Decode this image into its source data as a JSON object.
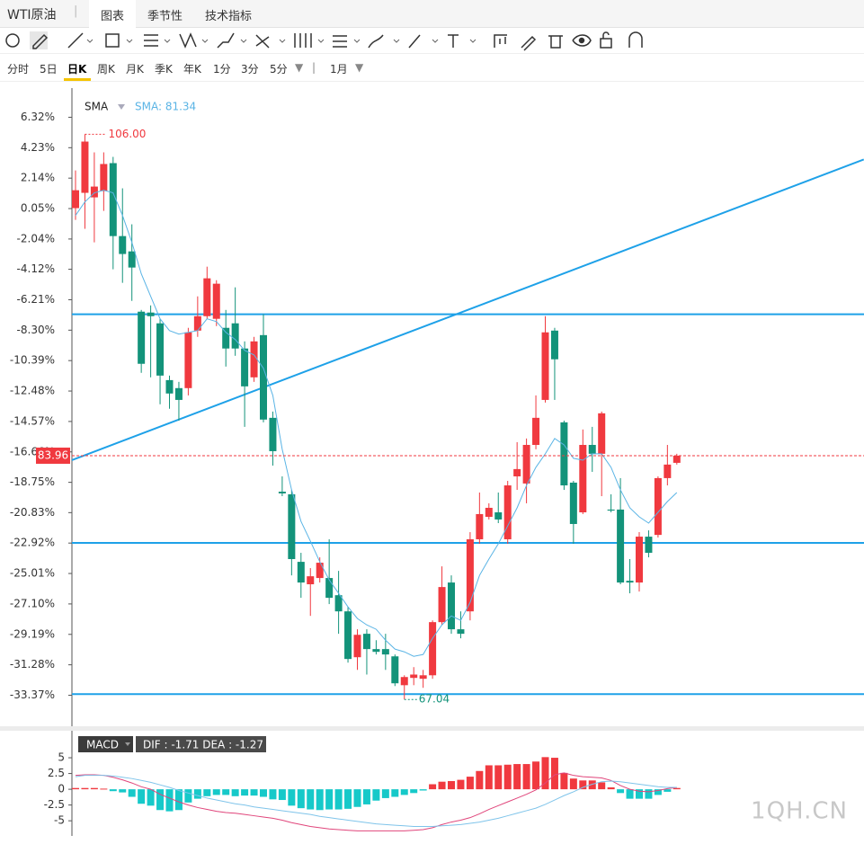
{
  "tabs": {
    "instrument": "WTI原油",
    "items": [
      "图表",
      "季节性",
      "技术指标"
    ]
  },
  "periods": {
    "items": [
      "分时",
      "5日",
      "日K",
      "周K",
      "月K",
      "季K",
      "年K",
      "1分",
      "3分",
      "5分"
    ],
    "range": "1月"
  },
  "watermark": "1QH.CN",
  "chart_data": [
    {
      "type": "candlestick",
      "indicator": "SMA",
      "indicator_label": "SMA: 81.34",
      "ylim": [
        -35.5,
        8.2
      ],
      "yticks": [
        {
          "value": 6.32,
          "label": "6.32%"
        },
        {
          "value": 4.23,
          "label": "4.23%"
        },
        {
          "value": 2.14,
          "label": "2.14%"
        },
        {
          "value": 0.05,
          "label": "0.05%"
        },
        {
          "value": -2.04,
          "label": "-2.04%"
        },
        {
          "value": -4.12,
          "label": "-4.12%"
        },
        {
          "value": -6.21,
          "label": "-6.21%"
        },
        {
          "value": -8.3,
          "label": "-8.30%"
        },
        {
          "value": -10.39,
          "label": "-10.39%"
        },
        {
          "value": -12.48,
          "label": "-12.48%"
        },
        {
          "value": -14.57,
          "label": "-14.57%"
        },
        {
          "value": -16.66,
          "label": "-16.66%"
        },
        {
          "value": -18.75,
          "label": "-18.75%"
        },
        {
          "value": -20.83,
          "label": "-20.83%"
        },
        {
          "value": -22.92,
          "label": "-22.92%"
        },
        {
          "value": -25.01,
          "label": "-25.01%"
        },
        {
          "value": -27.1,
          "label": "-27.10%"
        },
        {
          "value": -29.19,
          "label": "-29.19%"
        },
        {
          "value": -31.28,
          "label": "-31.28%"
        },
        {
          "value": -33.37,
          "label": "-33.37%"
        }
      ],
      "up_color": "#f0393f",
      "down_color": "#13937a",
      "ohlc": [
        [
          0.08,
          2.67,
          -0.73,
          1.31
        ],
        [
          1.13,
          5.15,
          -1.34,
          4.65
        ],
        [
          0.82,
          3.91,
          -2.27,
          1.56
        ],
        [
          1.25,
          3.91,
          -0.11,
          3.11
        ],
        [
          3.17,
          3.6,
          -4.12,
          -1.84
        ],
        [
          -1.84,
          1.44,
          -5.05,
          -3.07
        ],
        [
          -2.89,
          -1.03,
          -6.29,
          -4.0
        ],
        [
          -7.03,
          -6.91,
          -11.23,
          -10.61
        ],
        [
          -7.09,
          -6.6,
          -11.54,
          -7.34
        ],
        [
          -7.83,
          -7.52,
          -13.39,
          -11.42
        ],
        [
          -11.73,
          -11.42,
          -13.7,
          -12.65
        ],
        [
          -12.28,
          -11.85,
          -14.51,
          -13.09
        ],
        [
          -12.28,
          -8.14,
          -12.78,
          -8.45
        ],
        [
          -8.33,
          -5.98,
          -8.76,
          -7.34
        ],
        [
          -7.34,
          -3.94,
          -7.52,
          -4.74
        ],
        [
          -7.52,
          -4.87,
          -8.02,
          -5.11
        ],
        [
          -8.14,
          -6.91,
          -10.8,
          -9.56
        ],
        [
          -7.83,
          -5.36,
          -10.06,
          -9.56
        ],
        [
          -9.56,
          -9.07,
          -14.94,
          -12.16
        ],
        [
          -11.54,
          -8.76,
          -11.85,
          -9.07
        ],
        [
          -8.64,
          -7.21,
          -14.63,
          -14.44
        ],
        [
          -14.32,
          -13.89,
          -17.6,
          -16.61
        ],
        [
          -19.39,
          -18.34,
          -19.7,
          -19.51
        ],
        [
          -19.57,
          -19.27,
          -25.14,
          -24.02
        ],
        [
          -24.21,
          -23.59,
          -26.68,
          -25.63
        ],
        [
          -25.75,
          -24.64,
          -27.92,
          -25.2
        ],
        [
          -25.32,
          -23.9,
          -25.63,
          -24.27
        ],
        [
          -25.32,
          -22.66,
          -27.11,
          -26.68
        ],
        [
          -26.5,
          -24.83,
          -29.15,
          -27.61
        ],
        [
          -27.61,
          -27.3,
          -31.13,
          -30.88
        ],
        [
          -30.76,
          -28.84,
          -31.63,
          -29.22
        ],
        [
          -29.15,
          -28.84,
          -31.95,
          -30.2
        ],
        [
          -30.2,
          -29.59,
          -30.57,
          -30.39
        ],
        [
          -30.2,
          -29.15,
          -31.63,
          -30.57
        ],
        [
          -30.7,
          -30.57,
          -32.74,
          -32.55
        ],
        [
          -32.68,
          -32.0,
          -33.66,
          -32.12
        ],
        [
          -32.18,
          -31.44,
          -32.68,
          -31.95
        ],
        [
          -32.24,
          -31.63,
          -32.86,
          -32.0
        ],
        [
          -32.0,
          -28.23,
          -32.24,
          -28.35
        ],
        [
          -28.35,
          -24.52,
          -28.54,
          -25.94
        ],
        [
          -25.63,
          -25.14,
          -29.15,
          -28.84
        ],
        [
          -28.84,
          -27.61,
          -29.46,
          -29.15
        ],
        [
          -27.61,
          -22.17,
          -28.23,
          -22.66
        ],
        [
          -22.66,
          -19.45,
          -22.97,
          -20.93
        ],
        [
          -21.12,
          -20.19,
          -21.3,
          -20.5
        ],
        [
          -20.81,
          -19.45,
          -21.55,
          -21.3
        ],
        [
          -22.66,
          -18.65,
          -22.97,
          -18.96
        ],
        [
          -18.34,
          -15.99,
          -19.27,
          -17.84
        ],
        [
          -18.83,
          -15.74,
          -20.19,
          -16.18
        ],
        [
          -16.18,
          -12.78,
          -16.48,
          -14.32
        ],
        [
          -13.09,
          -7.34,
          -13.27,
          -8.45
        ],
        [
          -8.33,
          -8.14,
          -13.09,
          -10.3
        ],
        [
          -14.63,
          -14.51,
          -19.27,
          -18.96
        ],
        [
          -18.77,
          -18.65,
          -22.97,
          -21.61
        ],
        [
          -20.81,
          -15.12,
          -20.93,
          -16.18
        ],
        [
          -16.18,
          -14.94,
          -18.03,
          -16.79
        ],
        [
          -16.79,
          -13.89,
          -19.7,
          -14.01
        ],
        [
          -20.62,
          -19.57,
          -20.81,
          -20.69
        ],
        [
          -20.62,
          -18.46,
          -25.75,
          -25.63
        ],
        [
          -25.51,
          -24.02,
          -26.37,
          -25.63
        ],
        [
          -25.63,
          -22.17,
          -26.25,
          -22.48
        ],
        [
          -22.48,
          -22.05,
          -23.9,
          -23.59
        ],
        [
          -22.36,
          -18.34,
          -22.54,
          -18.46
        ],
        [
          -18.46,
          -16.18,
          -18.96,
          -17.53
        ],
        [
          -17.41,
          -16.79,
          -17.53,
          -16.92
        ]
      ],
      "sma": {
        "color": "#5ab4e5",
        "values": [
          -0.42,
          0.51,
          1.13,
          1.31,
          1.13,
          -0.42,
          -2.27,
          -4.43,
          -5.98,
          -7.52,
          -8.33,
          -8.57,
          -8.45,
          -8.33,
          -7.52,
          -7.71,
          -8.45,
          -8.94,
          -9.69,
          -10.0,
          -10.92,
          -12.78,
          -16.48,
          -19.27,
          -21.43,
          -22.79,
          -24.21,
          -25.45,
          -26.37,
          -27.3,
          -28.1,
          -28.54,
          -28.84,
          -29.59,
          -30.2,
          -30.39,
          -30.7,
          -30.57,
          -29.46,
          -28.54,
          -27.92,
          -28.23,
          -26.99,
          -25.14,
          -24.02,
          -22.97,
          -21.74,
          -20.5,
          -18.96,
          -17.72,
          -16.79,
          -15.74,
          -16.18,
          -17.1,
          -17.23,
          -16.79,
          -16.79,
          -17.72,
          -19.27,
          -20.5,
          -21.12,
          -21.55,
          -20.81,
          -20.07,
          -19.45
        ]
      },
      "high_label": "106.00",
      "low_label": "67.04",
      "last_label": "83.96",
      "drawing_color": "#1ea1e8",
      "hlines": [
        -7.21,
        -22.91,
        -33.29
      ],
      "trendline": [
        [
          -0.4,
          -17.23
        ],
        [
          83.9,
          3.42
        ]
      ]
    },
    {
      "type": "macd",
      "title": "MACD",
      "label": "DIF : -1.71  DEA : -1.27",
      "ylim": [
        -7.4,
        9
      ],
      "yticks": [
        5,
        2.5,
        0,
        -2.5,
        -5
      ],
      "up_color": "#f0393f",
      "down_color": "#16c9c9",
      "histogram": [
        0.2,
        0.2,
        0.2,
        0.1,
        -0.3,
        -0.5,
        -1.2,
        -2.3,
        -2.6,
        -3.3,
        -3.5,
        -3.3,
        -2.1,
        -1.5,
        -1.1,
        -0.9,
        -0.9,
        -1.1,
        -1.0,
        -1.0,
        -1.2,
        -1.6,
        -1.7,
        -2.6,
        -3.0,
        -3.2,
        -3.3,
        -3.2,
        -3.2,
        -3.1,
        -2.8,
        -2.4,
        -1.8,
        -1.4,
        -1.2,
        -0.9,
        -0.6,
        -0.2,
        0.8,
        1.2,
        1.3,
        1.5,
        2.0,
        2.9,
        3.8,
        3.8,
        3.9,
        4.0,
        4.0,
        4.4,
        5.1,
        5.0,
        2.6,
        1.7,
        1.4,
        1.4,
        1.1,
        0.3,
        -0.6,
        -1.5,
        -1.5,
        -1.5,
        -0.9,
        -0.4,
        0.2
      ],
      "series": [
        {
          "color": "#e0457b",
          "values": [
            2.2,
            2.3,
            2.3,
            2.2,
            1.9,
            1.5,
            1.0,
            0.4,
            0,
            -0.8,
            -1.4,
            -2.0,
            -2.5,
            -2.9,
            -3.2,
            -3.5,
            -3.7,
            -3.8,
            -4.0,
            -4.2,
            -4.4,
            -4.6,
            -4.9,
            -5.3,
            -5.6,
            -5.9,
            -6.1,
            -6.3,
            -6.4,
            -6.5,
            -6.6,
            -6.6,
            -6.6,
            -6.6,
            -6.6,
            -6.6,
            -6.5,
            -6.4,
            -6.1,
            -5.6,
            -5.2,
            -4.9,
            -4.5,
            -3.9,
            -3.2,
            -2.6,
            -2.0,
            -1.4,
            -0.8,
            -0.1,
            1.0,
            2.3,
            2.6,
            2.2,
            2.0,
            1.9,
            1.8,
            1.4,
            0.6,
            0,
            -0.3,
            -0.4,
            -0.2,
            0.1,
            0.3
          ]
        },
        {
          "color": "#7fc4ea",
          "values": [
            2.0,
            2.2,
            2.2,
            2.2,
            2.1,
            1.9,
            1.7,
            1.4,
            1.1,
            0.7,
            0.3,
            -0.2,
            -0.6,
            -1.0,
            -1.4,
            -1.7,
            -2.0,
            -2.3,
            -2.5,
            -2.8,
            -3.0,
            -3.2,
            -3.4,
            -3.6,
            -3.8,
            -4.0,
            -4.3,
            -4.5,
            -4.7,
            -4.9,
            -5.1,
            -5.3,
            -5.5,
            -5.6,
            -5.7,
            -5.8,
            -5.9,
            -5.9,
            -5.9,
            -5.8,
            -5.7,
            -5.6,
            -5.4,
            -5.2,
            -4.9,
            -4.6,
            -4.2,
            -3.8,
            -3.4,
            -3.0,
            -2.4,
            -1.7,
            -1.0,
            -0.4,
            0.3,
            0.8,
            1.2,
            1.3,
            1.2,
            1.0,
            0.8,
            0.6,
            0.4,
            0.3,
            0.3
          ]
        }
      ]
    }
  ]
}
